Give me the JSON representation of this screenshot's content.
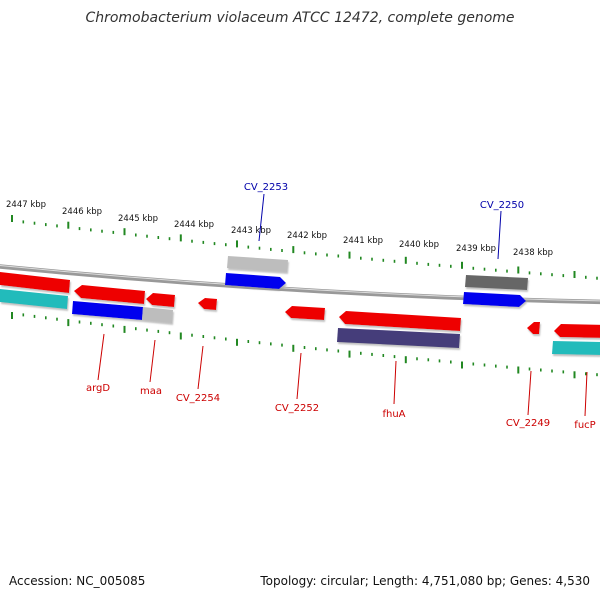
{
  "title": "Chromobacterium violaceum ATCC 12472, complete genome",
  "footer": {
    "accession": "Accession: NC_005085",
    "topology": "Topology: circular; Length: 4,751,080 bp; Genes: 4,530"
  },
  "colors": {
    "forward_cds": "#0000ee",
    "reverse_cds": "#ee0000",
    "rna": "#bbbbbb",
    "other_gene": "#666666",
    "highlight": "#443c7a",
    "cyan_feature": "#22bbbb",
    "tick": "#228822",
    "backbone": "#888888",
    "label_forward": "#0000aa",
    "label_reverse": "#cc0000"
  },
  "scale_labels": [
    "2447 kbp",
    "2446 kbp",
    "2445 kbp",
    "2444 kbp",
    "2443 kbp",
    "2442 kbp",
    "2441 kbp",
    "2440 kbp",
    "2439 kbp",
    "2438 kbp"
  ],
  "gene_labels": [
    {
      "name": "CV_2253",
      "strand": "forward"
    },
    {
      "name": "CV_2250",
      "strand": "forward"
    },
    {
      "name": "argD",
      "strand": "reverse"
    },
    {
      "name": "maa",
      "strand": "reverse"
    },
    {
      "name": "CV_2254",
      "strand": "reverse"
    },
    {
      "name": "CV_2252",
      "strand": "reverse"
    },
    {
      "name": "fhuA",
      "strand": "reverse"
    },
    {
      "name": "CV_2249",
      "strand": "reverse"
    },
    {
      "name": "fucP",
      "strand": "reverse"
    }
  ]
}
